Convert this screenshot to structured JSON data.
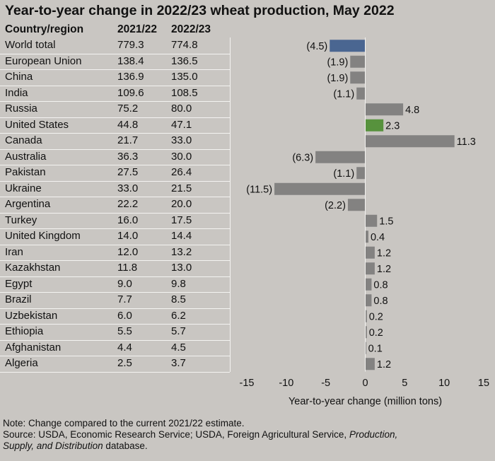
{
  "title": "Year-to-year change in 2022/23 wheat production, May 2022",
  "table": {
    "headers": [
      "Country/region",
      "2021/22",
      "2022/23"
    ]
  },
  "chart_data": {
    "type": "bar",
    "orientation": "horizontal",
    "categories": [
      "World total",
      "European Union",
      "China",
      "India",
      "Russia",
      "United States",
      "Canada",
      "Australia",
      "Pakistan",
      "Ukraine",
      "Argentina",
      "Turkey",
      "United Kingdom",
      "Iran",
      "Kazakhstan",
      "Egypt",
      "Brazil",
      "Uzbekistan",
      "Ethiopia",
      "Afghanistan",
      "Algeria"
    ],
    "production_2021_22": [
      "779.3",
      "138.4",
      "136.9",
      "109.6",
      "75.2",
      "44.8",
      "21.7",
      "36.3",
      "27.5",
      "33.0",
      "22.2",
      "16.0",
      "14.0",
      "12.0",
      "11.8",
      "9.0",
      "7.7",
      "6.0",
      "5.5",
      "4.4",
      "2.5"
    ],
    "production_2022_23": [
      "774.8",
      "136.5",
      "135.0",
      "108.5",
      "80.0",
      "47.1",
      "33.0",
      "30.0",
      "26.4",
      "21.5",
      "20.0",
      "17.5",
      "14.4",
      "13.2",
      "13.0",
      "9.8",
      "8.5",
      "6.2",
      "5.7",
      "4.5",
      "3.7"
    ],
    "values": [
      -4.5,
      -1.9,
      -1.9,
      -1.1,
      4.8,
      2.3,
      11.3,
      -6.3,
      -1.1,
      -11.5,
      -2.2,
      1.5,
      0.4,
      1.2,
      1.2,
      0.8,
      0.8,
      0.2,
      0.2,
      0.1,
      1.2
    ],
    "value_labels": [
      "(4.5)",
      "(1.9)",
      "(1.9)",
      "(1.1)",
      "4.8",
      "2.3",
      "11.3",
      "(6.3)",
      "(1.1)",
      "(11.5)",
      "(2.2)",
      "1.5",
      "0.4",
      "1.2",
      "1.2",
      "0.8",
      "0.8",
      "0.2",
      "0.2",
      "0.1",
      "1.2"
    ],
    "xlim": [
      -15,
      15
    ],
    "xticks": [
      -15,
      -10,
      -5,
      0,
      5,
      10,
      15
    ],
    "xlabel": "Year-to-year change (million tons)",
    "colors": {
      "default": "#838281",
      "World total": "#4a6691",
      "United States": "#57923d"
    },
    "grid": false
  },
  "footer": {
    "note": "Note: Change compared to the current 2021/22 estimate.",
    "source_prefix": "Source: USDA, Economic Research Service; USDA, Foreign Agricultural Service, ",
    "source_italic_1": "Production,",
    "source_italic_2": "Supply, and Distribution",
    "source_suffix": " database."
  }
}
